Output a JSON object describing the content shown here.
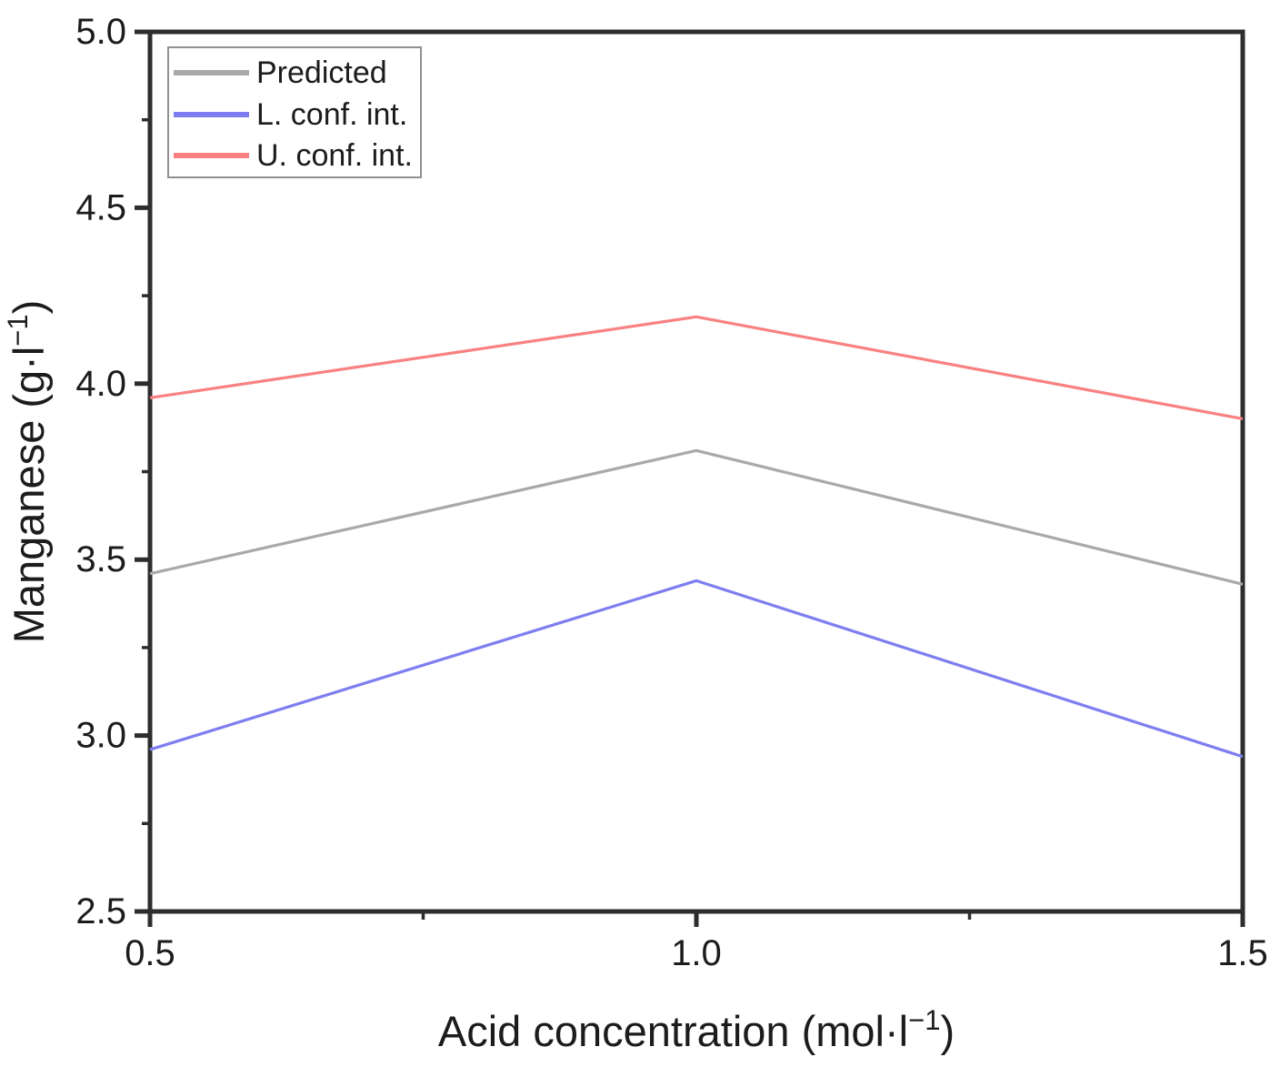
{
  "figure": {
    "background": "#ffffff"
  },
  "chart_data": {
    "type": "line",
    "title": "",
    "x": [
      0.5,
      1.0,
      1.5
    ],
    "series": [
      {
        "name": "Predicted",
        "color": "#a9a9a9",
        "values": [
          3.46,
          3.81,
          3.43
        ]
      },
      {
        "name": "L. conf. int.",
        "color": "#7e7ef1",
        "values": [
          2.96,
          3.44,
          2.94
        ]
      },
      {
        "name": "U. conf. int.",
        "color": "#f98181",
        "values": [
          3.96,
          4.19,
          3.9
        ]
      }
    ],
    "xlabel": "Acid concentration (mol·l⁻¹)",
    "ylabel": "Manganese (g·l⁻¹)",
    "xlabel_rich": [
      {
        "text": "Acid concentration (mol·l"
      },
      {
        "text": "−1",
        "sup": true
      },
      {
        "text": ")"
      }
    ],
    "ylabel_rich": [
      {
        "text": "Manganese (g·l"
      },
      {
        "text": "−1",
        "sup": true
      },
      {
        "text": ")"
      }
    ],
    "xlim": [
      0.5,
      1.5
    ],
    "ylim": [
      2.5,
      5.0
    ],
    "x_major_ticks": [
      0.5,
      1.0,
      1.5
    ],
    "x_tick_labels": [
      "0.5",
      "1.0",
      "1.5"
    ],
    "x_minor_ticks": [
      0.75,
      1.25
    ],
    "y_major_ticks": [
      2.5,
      3.0,
      3.5,
      4.0,
      4.5,
      5.0
    ],
    "y_tick_labels": [
      "2.5",
      "3.0",
      "3.5",
      "4.0",
      "4.5",
      "5.0"
    ],
    "y_minor_ticks": [
      2.75,
      3.25,
      3.75,
      4.25,
      4.75
    ],
    "grid": false,
    "legend": {
      "position": "top-left",
      "entries": [
        "Predicted",
        "L. conf. int.",
        "U. conf. int."
      ]
    },
    "axis_color": "#2d2d2d",
    "text_color": "#1c1c1c",
    "legend_border_color": "#909090",
    "legend_background": "#ffffff"
  }
}
